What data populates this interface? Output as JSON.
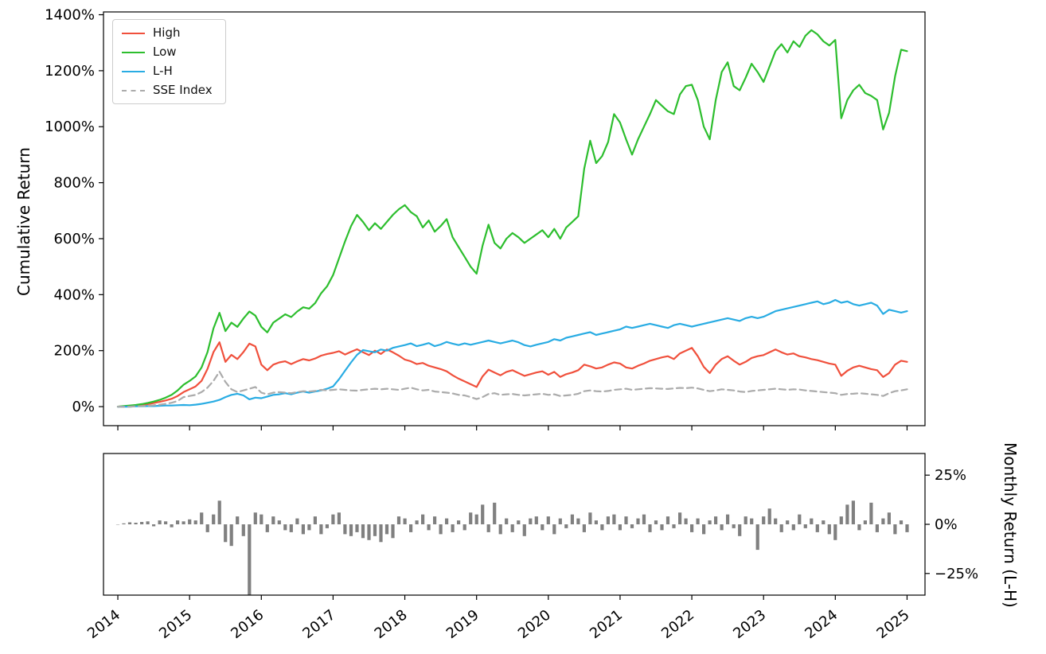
{
  "figure": {
    "background": "#ffffff",
    "spine_color": "#000000",
    "tick_label_color": "#000000"
  },
  "xticks": {
    "values": [
      2014,
      2015,
      2016,
      2017,
      2018,
      2019,
      2020,
      2021,
      2022,
      2023,
      2024,
      2025
    ],
    "labels": [
      "2014",
      "2015",
      "2016",
      "2017",
      "2018",
      "2019",
      "2020",
      "2021",
      "2022",
      "2023",
      "2024",
      "2025"
    ]
  },
  "chart_data": [
    {
      "type": "line",
      "panel": "top",
      "title": "",
      "xlabel": "",
      "ylabel": "Cumulative Return",
      "x_start_year": 2014,
      "x_frequency": "monthly",
      "xlim": [
        2013.8,
        2025.25
      ],
      "ylim": [
        -68,
        1410
      ],
      "yticks": [
        0,
        200,
        400,
        600,
        800,
        1000,
        1200,
        1400
      ],
      "ytick_labels": [
        "0%",
        "200%",
        "400%",
        "600%",
        "800%",
        "1000%",
        "1200%",
        "1400%"
      ],
      "grid": false,
      "legend_position": "upper left",
      "series": [
        {
          "name": "High",
          "color": "#f0503c",
          "style": "solid",
          "values": [
            0,
            1,
            2,
            4,
            6,
            9,
            13,
            17,
            22,
            28,
            38,
            52,
            62,
            72,
            92,
            135,
            195,
            230,
            160,
            185,
            170,
            195,
            225,
            215,
            150,
            130,
            150,
            158,
            162,
            152,
            162,
            170,
            165,
            172,
            182,
            188,
            192,
            198,
            186,
            196,
            205,
            194,
            184,
            200,
            188,
            204,
            194,
            182,
            168,
            162,
            152,
            156,
            146,
            140,
            134,
            126,
            112,
            100,
            90,
            80,
            70,
            108,
            132,
            122,
            112,
            124,
            130,
            120,
            110,
            116,
            122,
            126,
            114,
            124,
            106,
            116,
            122,
            130,
            150,
            144,
            136,
            140,
            150,
            158,
            154,
            140,
            136,
            146,
            154,
            164,
            170,
            176,
            180,
            170,
            190,
            200,
            210,
            180,
            142,
            120,
            150,
            170,
            180,
            164,
            150,
            160,
            174,
            180,
            184,
            194,
            204,
            194,
            186,
            190,
            180,
            176,
            170,
            166,
            160,
            154,
            150,
            110,
            128,
            140,
            146,
            140,
            134,
            130,
            106,
            120,
            150,
            164,
            160
          ]
        },
        {
          "name": "Low",
          "color": "#2dbe2e",
          "style": "solid",
          "values": [
            0,
            2,
            4,
            6,
            9,
            13,
            18,
            24,
            32,
            42,
            58,
            78,
            92,
            108,
            140,
            195,
            280,
            335,
            270,
            300,
            285,
            315,
            340,
            325,
            285,
            265,
            300,
            315,
            330,
            320,
            340,
            355,
            350,
            370,
            405,
            430,
            470,
            530,
            590,
            645,
            685,
            660,
            630,
            655,
            635,
            660,
            685,
            705,
            720,
            695,
            680,
            640,
            665,
            625,
            645,
            670,
            605,
            570,
            535,
            500,
            475,
            575,
            650,
            585,
            565,
            600,
            620,
            605,
            585,
            600,
            615,
            630,
            605,
            635,
            600,
            640,
            660,
            680,
            850,
            950,
            870,
            895,
            945,
            1045,
            1015,
            955,
            900,
            955,
            1000,
            1045,
            1095,
            1075,
            1055,
            1045,
            1115,
            1145,
            1150,
            1095,
            1000,
            955,
            1095,
            1195,
            1230,
            1145,
            1130,
            1175,
            1225,
            1195,
            1160,
            1215,
            1270,
            1295,
            1265,
            1305,
            1285,
            1325,
            1345,
            1330,
            1305,
            1290,
            1310,
            1030,
            1095,
            1130,
            1150,
            1120,
            1110,
            1095,
            990,
            1050,
            1180,
            1275,
            1270
          ]
        },
        {
          "name": "L-H",
          "color": "#29ace3",
          "style": "solid",
          "values": [
            0,
            0,
            0,
            1,
            1,
            2,
            2,
            3,
            4,
            4,
            5,
            6,
            5,
            7,
            10,
            14,
            18,
            24,
            34,
            42,
            46,
            40,
            26,
            32,
            30,
            36,
            42,
            44,
            48,
            44,
            50,
            54,
            50,
            54,
            58,
            64,
            72,
            98,
            128,
            158,
            185,
            202,
            198,
            194,
            204,
            200,
            210,
            215,
            220,
            226,
            216,
            221,
            227,
            216,
            222,
            231,
            225,
            220,
            226,
            221,
            226,
            231,
            236,
            231,
            226,
            231,
            236,
            230,
            220,
            215,
            221,
            226,
            231,
            241,
            236,
            246,
            251,
            256,
            261,
            266,
            256,
            261,
            266,
            271,
            276,
            286,
            281,
            286,
            291,
            296,
            291,
            286,
            281,
            291,
            296,
            291,
            286,
            291,
            296,
            301,
            306,
            311,
            316,
            311,
            306,
            316,
            321,
            316,
            321,
            331,
            341,
            346,
            351,
            356,
            361,
            366,
            371,
            376,
            366,
            371,
            381,
            371,
            376,
            366,
            361,
            366,
            371,
            361,
            331,
            346,
            341,
            336,
            341
          ]
        },
        {
          "name": "SSE Index",
          "color": "#ababab",
          "style": "dashed",
          "values": [
            0,
            -1,
            0,
            1,
            2,
            3,
            5,
            7,
            10,
            14,
            20,
            34,
            38,
            42,
            52,
            68,
            92,
            125,
            88,
            62,
            52,
            58,
            64,
            70,
            50,
            44,
            50,
            52,
            50,
            48,
            52,
            55,
            54,
            56,
            60,
            58,
            60,
            62,
            60,
            58,
            57,
            60,
            62,
            64,
            62,
            64,
            62,
            60,
            64,
            68,
            62,
            58,
            60,
            54,
            52,
            50,
            47,
            42,
            40,
            34,
            27,
            34,
            45,
            48,
            42,
            44,
            45,
            42,
            40,
            42,
            44,
            46,
            42,
            44,
            38,
            40,
            42,
            46,
            55,
            58,
            55,
            54,
            56,
            60,
            62,
            64,
            60,
            62,
            64,
            66,
            65,
            64,
            63,
            65,
            67,
            66,
            68,
            65,
            60,
            55,
            58,
            62,
            60,
            58,
            54,
            52,
            56,
            58,
            60,
            62,
            64,
            62,
            60,
            62,
            61,
            58,
            56,
            54,
            52,
            50,
            48,
            42,
            45,
            46,
            48,
            46,
            44,
            42,
            38,
            48,
            55,
            58,
            62
          ]
        }
      ]
    },
    {
      "type": "bar",
      "panel": "bottom",
      "title": "",
      "xlabel": "",
      "ylabel": "Monthly Return (L-H)",
      "x_start_year": 2014,
      "x_frequency": "monthly",
      "xlim": [
        2013.8,
        2025.25
      ],
      "ylim": [
        -36,
        36
      ],
      "yticks": [
        25,
        0,
        -25
      ],
      "ytick_labels": [
        "25%",
        "0%",
        "−25%"
      ],
      "grid": false,
      "color": "#808080",
      "values": [
        0,
        0.5,
        1,
        0.8,
        1.2,
        1.5,
        -1,
        2,
        1.5,
        -1.5,
        2,
        1.5,
        2.5,
        2,
        6,
        -4,
        5,
        12,
        -9,
        -11,
        4,
        -6,
        -36.5,
        6,
        5,
        -4,
        4,
        2,
        -3,
        -4,
        3,
        -5,
        -3,
        4,
        -5,
        -2,
        5,
        6,
        -5,
        -6,
        -4,
        -7,
        -8,
        -6,
        -9,
        -5,
        -7,
        4,
        3,
        -4,
        2,
        5,
        -3,
        4,
        -5,
        3,
        -4,
        2,
        -3,
        6,
        5,
        10,
        -4,
        11,
        -5,
        3,
        -4,
        2,
        -6,
        3,
        4,
        -3,
        4,
        -5,
        3,
        -2,
        5,
        3,
        -4,
        6,
        2,
        -3,
        4,
        5,
        -3,
        4,
        -2,
        3,
        5,
        -4,
        2,
        -3,
        4,
        -2,
        6,
        3,
        -4,
        3,
        -5,
        2,
        4,
        -3,
        5,
        -2,
        -6,
        4,
        3,
        -13,
        4,
        8,
        3,
        -4,
        2,
        -3,
        5,
        -2,
        3,
        -4,
        2,
        -5,
        -8,
        4,
        10,
        12,
        -3,
        2,
        11,
        -4,
        3,
        6,
        -5,
        2,
        -4
      ]
    }
  ]
}
